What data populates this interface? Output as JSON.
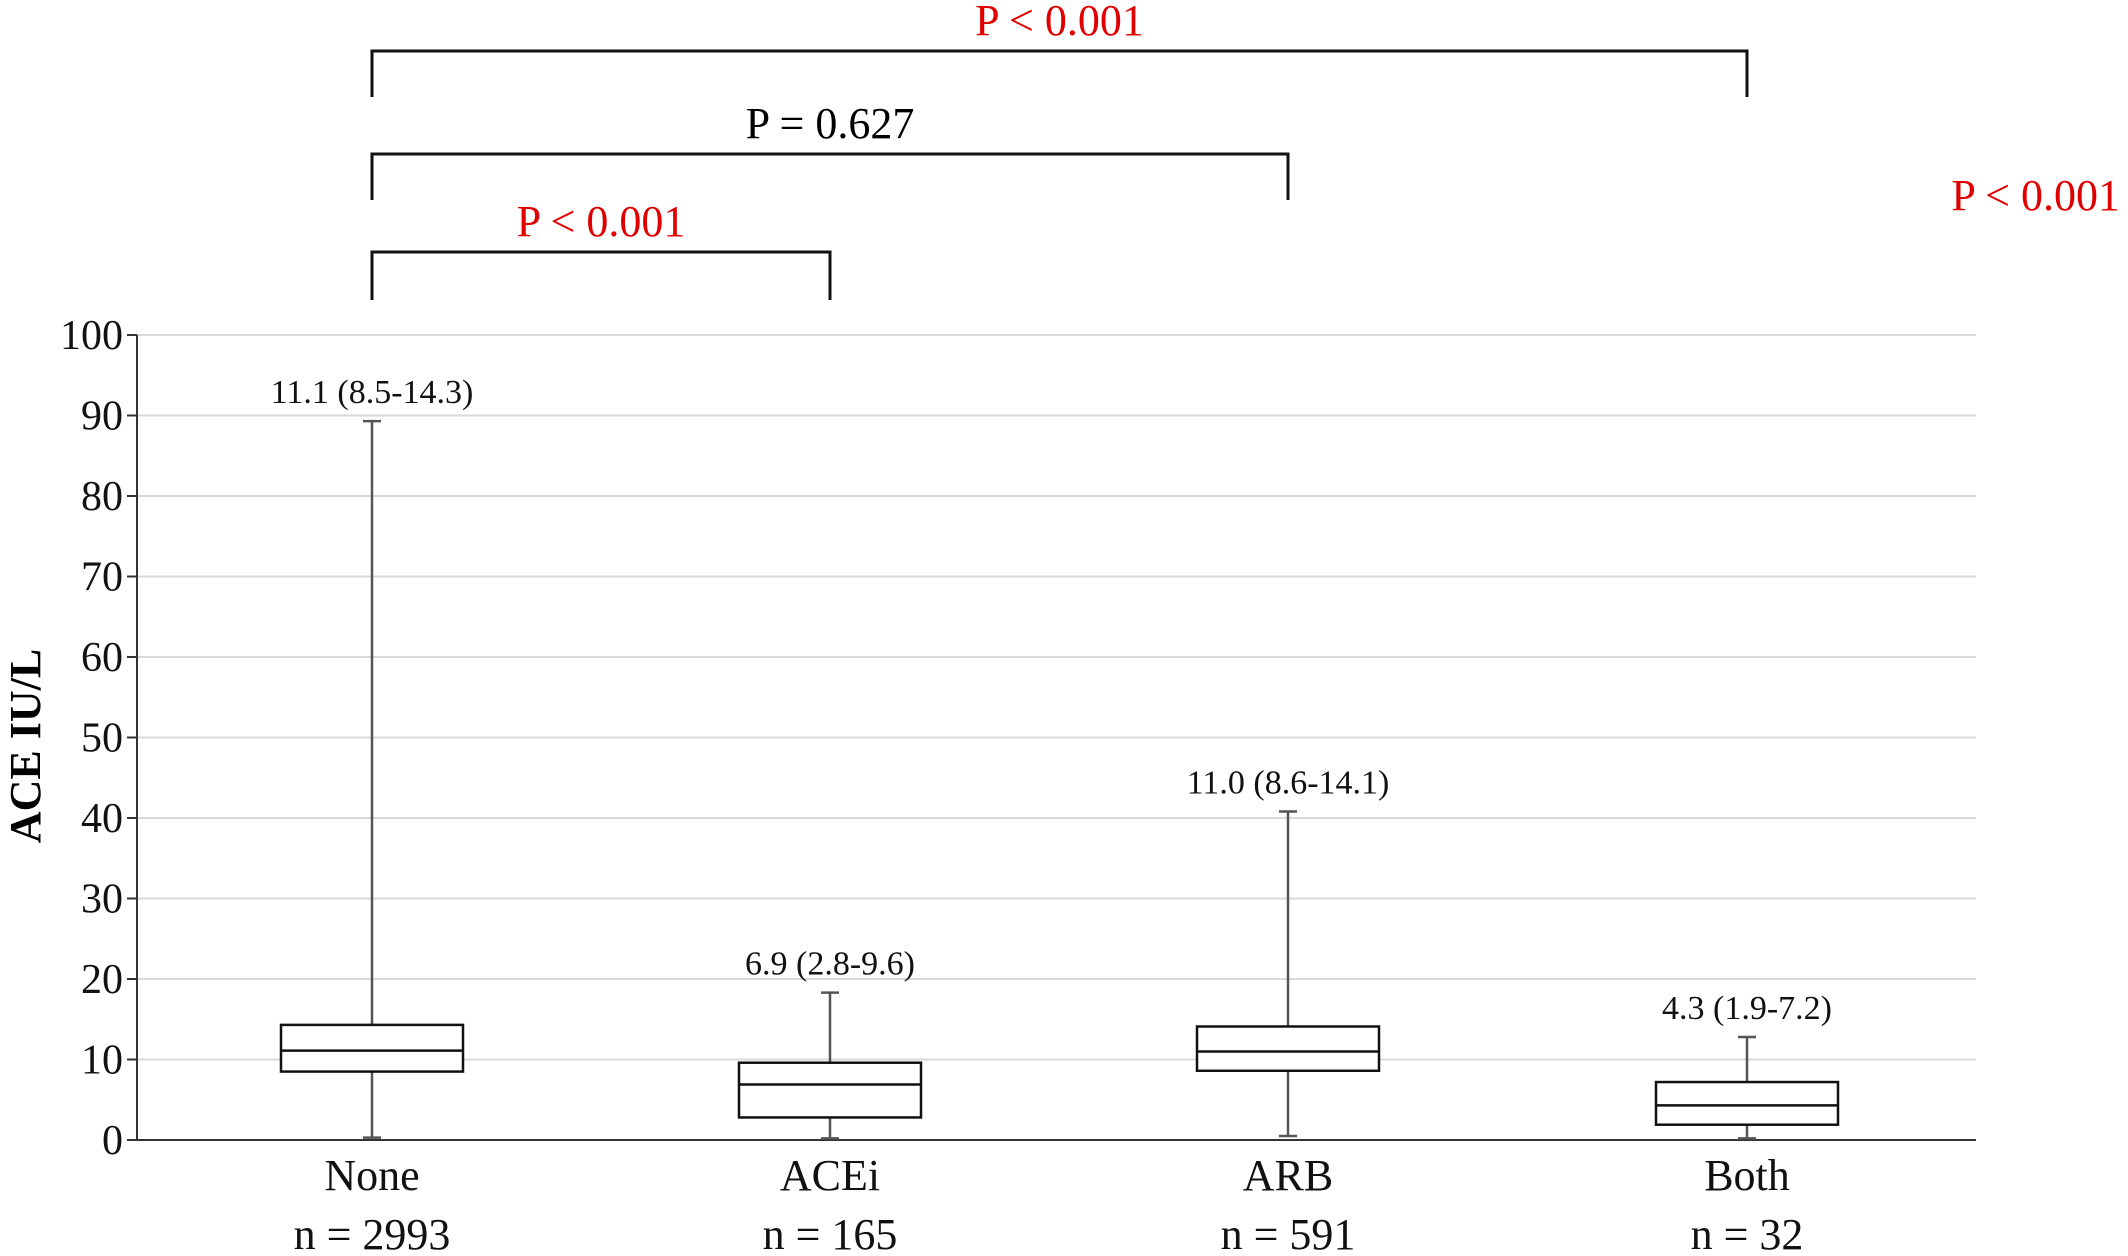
{
  "chart_data": {
    "type": "box",
    "ylabel": "ACE IU/L",
    "ylim": [
      0,
      100
    ],
    "yticks": [
      "0",
      "10",
      "20",
      "30",
      "40",
      "50",
      "60",
      "70",
      "80",
      "90",
      "100"
    ],
    "grid": true,
    "groups": [
      {
        "category": "None",
        "n_label": "n = 2993",
        "label": "11.1 (8.5-14.3)",
        "min": 0.3,
        "q1": 8.5,
        "median": 11.1,
        "q3": 14.3,
        "max": 89.3
      },
      {
        "category": "ACEi",
        "n_label": "n = 165",
        "label": "6.9 (2.8-9.6)",
        "min": 0.2,
        "q1": 2.8,
        "median": 6.9,
        "q3": 9.6,
        "max": 18.3
      },
      {
        "category": "ARB",
        "n_label": "n = 591",
        "label": "11.0 (8.6-14.1)",
        "min": 0.5,
        "q1": 8.6,
        "median": 11.0,
        "q3": 14.1,
        "max": 40.8
      },
      {
        "category": "Both",
        "n_label": "n = 32",
        "label": "4.3 (1.9-7.2)",
        "min": 0.2,
        "q1": 1.9,
        "median": 4.3,
        "q3": 7.2,
        "max": 12.8
      }
    ],
    "comparisons": [
      {
        "from": 0,
        "to": 3,
        "label": "P < 0.001",
        "color": "#e00000"
      },
      {
        "from": 0,
        "to": 2,
        "label": "P = 0.627",
        "color": "#000000"
      },
      {
        "from": 0,
        "to": 1,
        "label": "P < 0.001",
        "color": "#e00000"
      }
    ],
    "overall_label": "P < 0.001",
    "overall_color": "#e00000"
  }
}
